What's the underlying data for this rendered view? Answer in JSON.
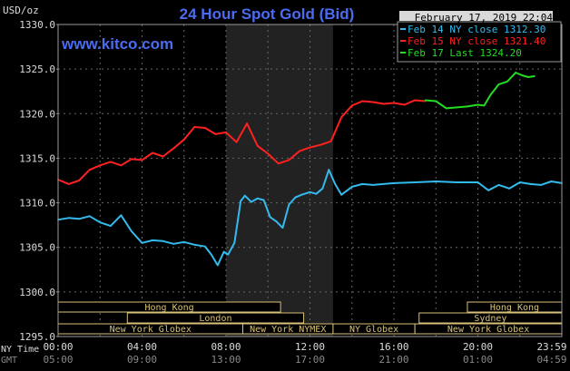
{
  "chart_data": {
    "type": "line",
    "title": "24 Hour Spot Gold (Bid)",
    "site": "www.kitco.com",
    "date_stamp": "February 17, 2019 22:04",
    "y_axis": {
      "unit_label": "USD/oz",
      "ylim": [
        1295.0,
        1330.0
      ],
      "ticks": [
        "1330.0",
        "1325.0",
        "1320.0",
        "1315.0",
        "1310.0",
        "1305.0",
        "1300.0",
        "1295.0"
      ]
    },
    "x_axis": {
      "xlim": [
        0,
        24
      ],
      "row1_label": "NY Time",
      "row2_label": "GMT",
      "ny_ticks": [
        "00:00",
        "04:00",
        "08:00",
        "12:00",
        "16:00",
        "20:00",
        "23:59"
      ],
      "gmt_ticks": [
        "05:00",
        "09:00",
        "13:00",
        "17:00",
        "21:00",
        "01:00",
        "04:59"
      ]
    },
    "legend": {
      "position": "top-right",
      "entries": [
        {
          "text": "Feb 14 NY close 1312.30",
          "color": "#33bbee"
        },
        {
          "text": "Feb 15 NY close 1321.40",
          "color": "#ff2020"
        },
        {
          "text": "Feb 17 Last 1324.20",
          "color": "#22dd22"
        }
      ]
    },
    "shaded_hours": [
      8,
      13.1
    ],
    "sessions": [
      {
        "name": "Hong Kong",
        "row": 0,
        "start": 0,
        "end": 10.6
      },
      {
        "name": "Hong Kong",
        "row": 0,
        "start": 19.5,
        "end": 24
      },
      {
        "name": "London",
        "row": 1,
        "start": 3.3,
        "end": 11.7
      },
      {
        "name": "Sydney",
        "row": 1,
        "start": 17.2,
        "end": 24
      },
      {
        "name": "New York Globex",
        "row": 2,
        "start": 0,
        "end": 8.8
      },
      {
        "name": "New York NYMEX",
        "row": 2,
        "start": 8.8,
        "end": 13.1
      },
      {
        "name": "NY Globex",
        "row": 2,
        "start": 13.1,
        "end": 17
      },
      {
        "name": "New York Globex",
        "row": 2,
        "start": 17,
        "end": 24
      }
    ],
    "series": [
      {
        "name": "Feb 14",
        "color": "#33bbee",
        "x": [
          0,
          0.5,
          1,
          1.5,
          2,
          2.5,
          3,
          3.5,
          4,
          4.5,
          5,
          5.5,
          6,
          6.5,
          7,
          7.3,
          7.6,
          7.9,
          8.1,
          8.4,
          8.7,
          8.9,
          9.2,
          9.5,
          9.8,
          10.1,
          10.4,
          10.7,
          11,
          11.3,
          11.6,
          12,
          12.3,
          12.6,
          12.9,
          13.2,
          13.5,
          14,
          14.5,
          15,
          16,
          17,
          18,
          19,
          20,
          20.5,
          21,
          21.5,
          22,
          22.5,
          23,
          23.5,
          24
        ],
        "values": [
          1308.1,
          1308.3,
          1308.2,
          1308.5,
          1307.8,
          1307.4,
          1308.6,
          1306.8,
          1305.5,
          1305.8,
          1305.7,
          1305.4,
          1305.6,
          1305.3,
          1305.1,
          1304.2,
          1303.0,
          1304.5,
          1304.2,
          1305.5,
          1310.2,
          1310.8,
          1310.1,
          1310.5,
          1310.3,
          1308.4,
          1307.9,
          1307.2,
          1309.8,
          1310.6,
          1310.9,
          1311.2,
          1311.0,
          1311.6,
          1313.7,
          1312.1,
          1310.9,
          1311.8,
          1312.1,
          1312.0,
          1312.2,
          1312.3,
          1312.4,
          1312.3,
          1312.3,
          1311.4,
          1312.0,
          1311.6,
          1312.3,
          1312.1,
          1312.0,
          1312.4,
          1312.2
        ]
      },
      {
        "name": "Feb 15",
        "color": "#ff2020",
        "x": [
          0,
          0.5,
          1,
          1.5,
          2,
          2.5,
          3,
          3.5,
          4,
          4.5,
          5,
          5.5,
          6,
          6.5,
          7,
          7.5,
          8,
          8.5,
          9,
          9.5,
          10,
          10.5,
          11,
          11.5,
          12,
          12.5,
          13,
          13.5,
          14,
          14.5,
          15,
          15.5,
          16,
          16.5,
          17,
          17.5
        ],
        "values": [
          1312.6,
          1312.1,
          1312.5,
          1313.7,
          1314.2,
          1314.6,
          1314.2,
          1314.9,
          1314.8,
          1315.6,
          1315.2,
          1316.1,
          1317.1,
          1318.5,
          1318.4,
          1317.7,
          1317.9,
          1316.8,
          1318.9,
          1316.4,
          1315.5,
          1314.4,
          1314.8,
          1315.8,
          1316.2,
          1316.5,
          1316.9,
          1319.6,
          1320.9,
          1321.4,
          1321.3,
          1321.1,
          1321.2,
          1321.0,
          1321.5,
          1321.4
        ]
      },
      {
        "name": "Feb 17",
        "color": "#22dd22",
        "x": [
          17.5,
          18.0,
          18.5,
          19.0,
          19.5,
          20.0,
          20.3,
          20.6,
          21.0,
          21.4,
          21.8,
          22.1,
          22.4,
          22.7
        ],
        "values": [
          1321.5,
          1321.4,
          1320.6,
          1320.7,
          1320.8,
          1321.0,
          1320.9,
          1322.1,
          1323.3,
          1323.6,
          1324.6,
          1324.3,
          1324.1,
          1324.2
        ]
      }
    ]
  }
}
